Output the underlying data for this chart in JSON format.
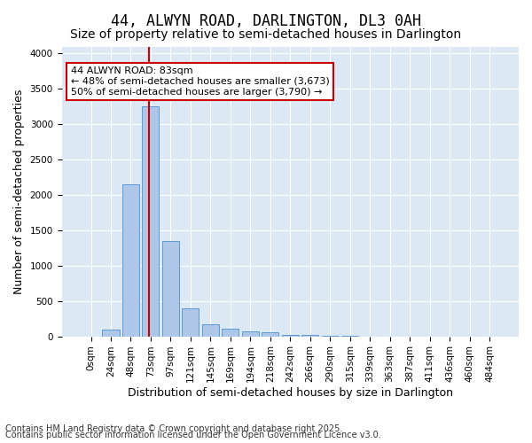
{
  "title": "44, ALWYN ROAD, DARLINGTON, DL3 0AH",
  "subtitle": "Size of property relative to semi-detached houses in Darlington",
  "xlabel": "Distribution of semi-detached houses by size in Darlington",
  "ylabel": "Number of semi-detached properties",
  "footnote1": "Contains HM Land Registry data © Crown copyright and database right 2025.",
  "footnote2": "Contains public sector information licensed under the Open Government Licence v3.0.",
  "bin_labels": [
    "0sqm",
    "24sqm",
    "48sqm",
    "73sqm",
    "97sqm",
    "121sqm",
    "145sqm",
    "169sqm",
    "194sqm",
    "218sqm",
    "242sqm",
    "266sqm",
    "290sqm",
    "315sqm",
    "339sqm",
    "363sqm",
    "387sqm",
    "411sqm",
    "436sqm",
    "460sqm",
    "484sqm"
  ],
  "bar_values": [
    0,
    100,
    2150,
    3250,
    1350,
    390,
    165,
    105,
    65,
    55,
    25,
    15,
    5,
    2,
    1,
    1,
    0,
    0,
    0,
    0,
    0
  ],
  "bar_color": "#aec6e8",
  "bar_edge_color": "#5a9ad4",
  "property_label": "44 ALWYN ROAD: 83sqm",
  "annotation_line1": "← 48% of semi-detached houses are smaller (3,673)",
  "annotation_line2": "50% of semi-detached houses are larger (3,790) →",
  "vline_x": 2.929,
  "vline_color": "#cc0000",
  "annotation_box_edge_color": "#cc0000",
  "annotation_bg_color": "#ffffff",
  "ylim": [
    0,
    4100
  ],
  "plot_bg_color": "#dce9f5",
  "title_fontsize": 12,
  "subtitle_fontsize": 10,
  "axis_label_fontsize": 9,
  "tick_fontsize": 7.5,
  "annotation_fontsize": 8,
  "footnote_fontsize": 7
}
